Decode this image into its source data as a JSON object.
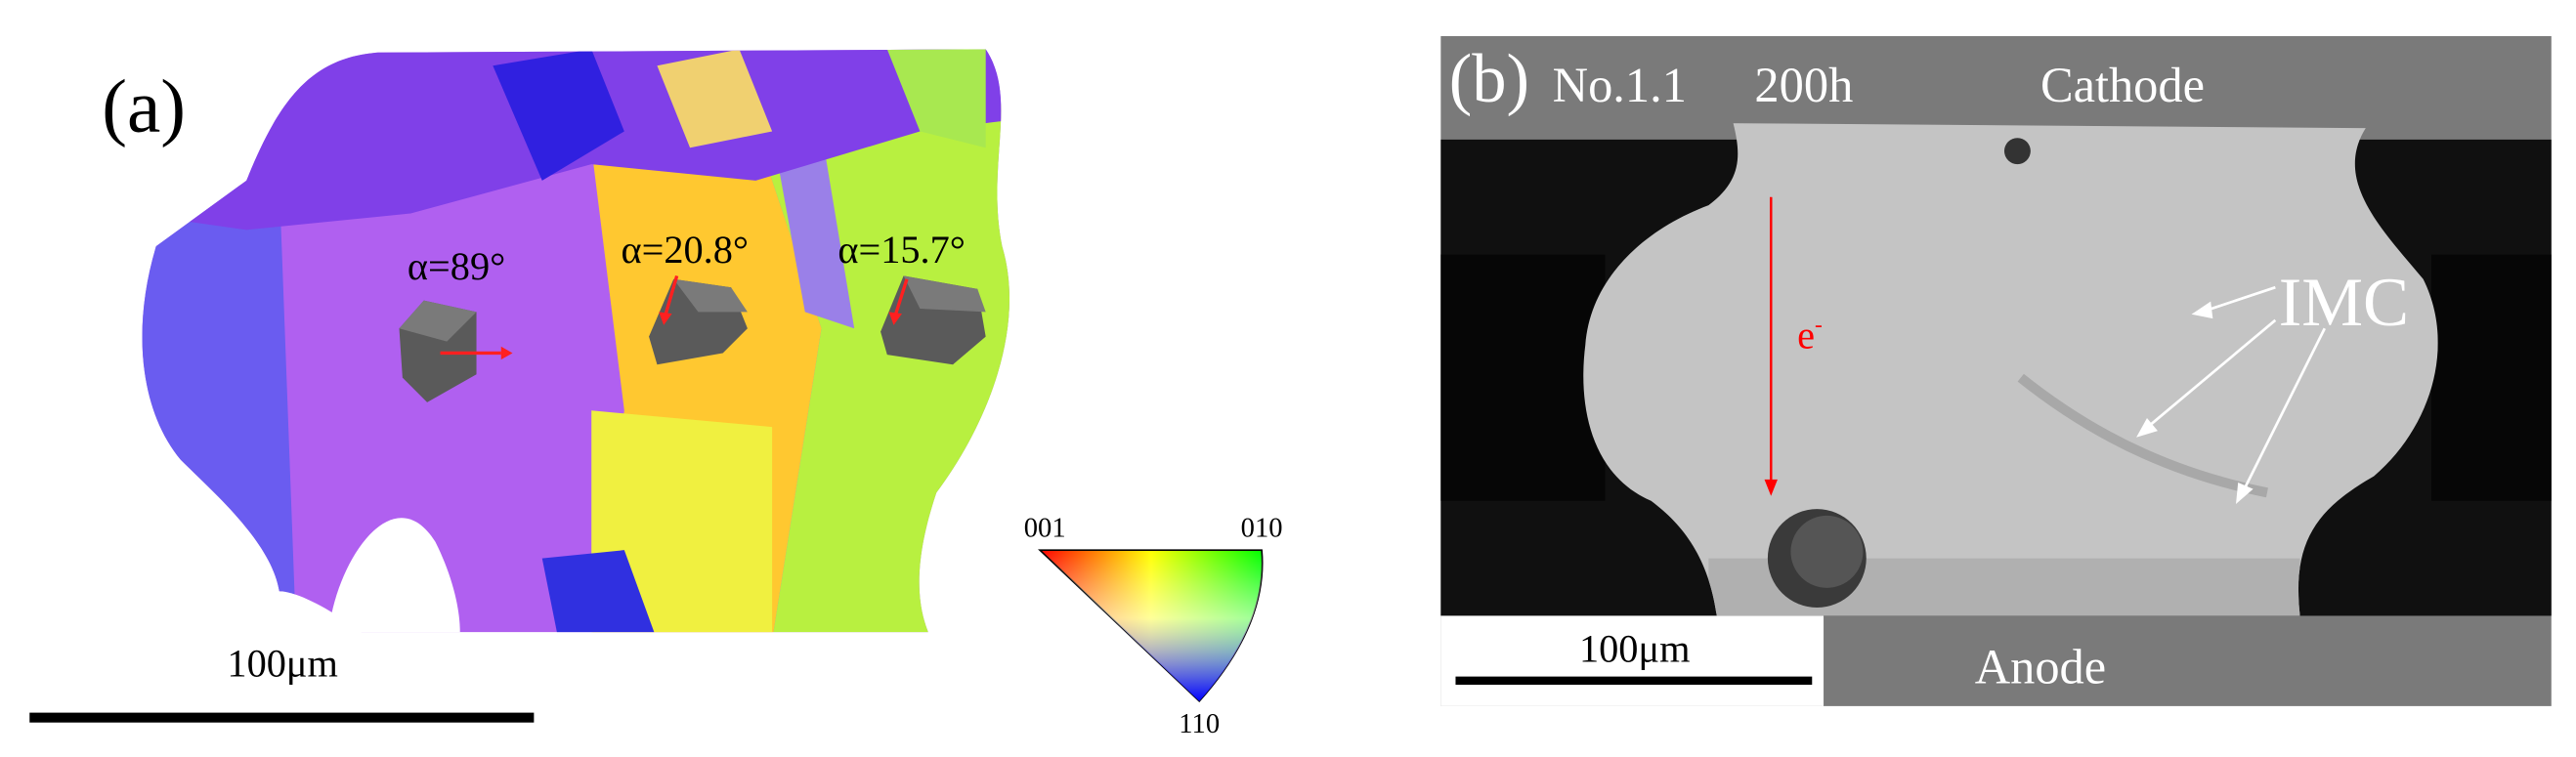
{
  "panel_a": {
    "label": "(a)",
    "angles": [
      "α=89°",
      "α=20.8°",
      "α=15.7°"
    ],
    "scale_bar": "100μm",
    "legend": {
      "top_left": "001",
      "top_right": "010",
      "bottom": "110"
    }
  },
  "panel_b": {
    "label": "(b)",
    "sample": "No.1.1",
    "time": "200h",
    "top_label": "Cathode",
    "electron": "e",
    "electron_charge": "-",
    "imc": "IMC",
    "scale_bar": "100μm",
    "bottom_label": "Anode"
  }
}
